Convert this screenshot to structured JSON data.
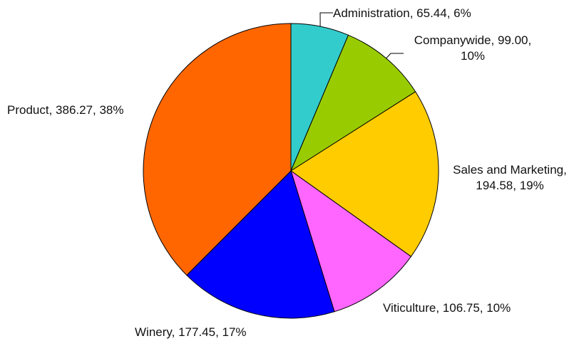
{
  "chart_data": {
    "type": "pie",
    "start_angle_deg": 90,
    "direction": "clockwise",
    "slices": [
      {
        "name": "Administration",
        "value": 65.44,
        "percent": 6,
        "color": "#33CCCC",
        "label_lines": [
          "Administration, 65.44, 6%"
        ]
      },
      {
        "name": "Companywide",
        "value": 99.0,
        "percent": 10,
        "color": "#99CC00",
        "label_lines": [
          "Companywide, 99.00,",
          "10%"
        ]
      },
      {
        "name": "Sales and Marketing",
        "value": 194.58,
        "percent": 19,
        "color": "#FFCC00",
        "label_lines": [
          "Sales and Marketing,",
          "194.58, 19%"
        ]
      },
      {
        "name": "Viticulture",
        "value": 106.75,
        "percent": 10,
        "color": "#FF66FF",
        "label_lines": [
          "Viticulture, 106.75, 10%"
        ]
      },
      {
        "name": "Winery",
        "value": 177.45,
        "percent": 17,
        "color": "#0000FF",
        "label_lines": [
          "Winery, 177.45, 17%"
        ]
      },
      {
        "name": "Product",
        "value": 386.27,
        "percent": 38,
        "color": "#FF6600",
        "label_lines": [
          "Product, 386.27, 38%"
        ]
      }
    ]
  }
}
